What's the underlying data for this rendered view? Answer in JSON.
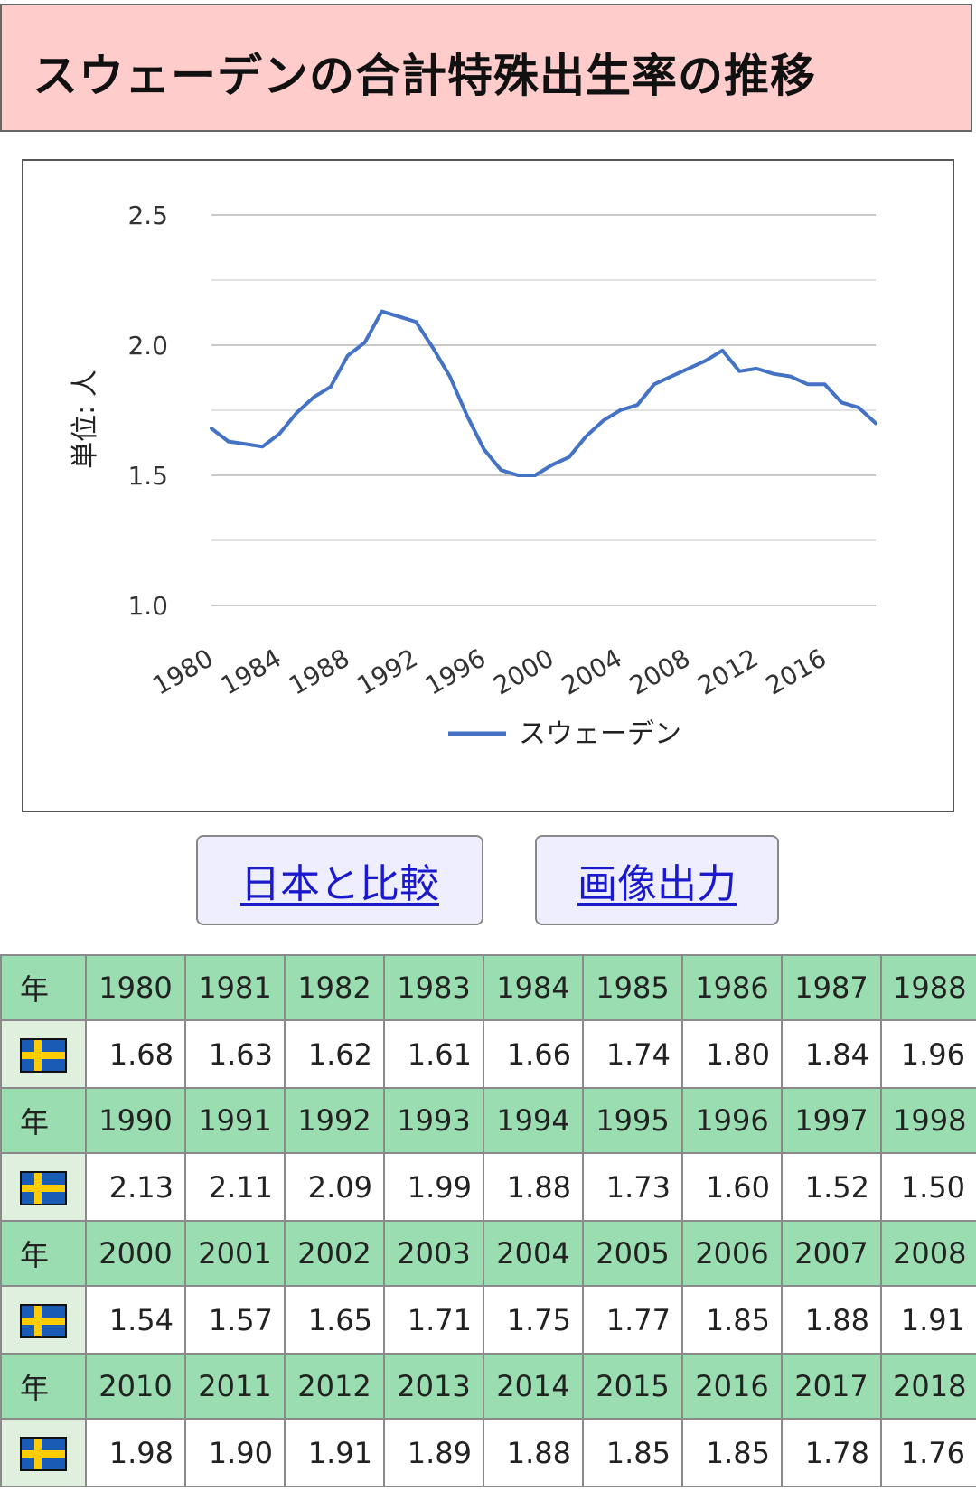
{
  "title": "スウェーデンの合計特殊出生率の推移",
  "buttons": {
    "compare": "日本と比較",
    "export": "画像出力"
  },
  "colors": {
    "line": "#4472c4",
    "flag_blue": "#1a5bb5",
    "flag_yellow": "#ffcc00",
    "year_row": "#99ddb0",
    "title_bg": "#ffcccc"
  },
  "chart_data": {
    "type": "line",
    "ylabel": "単位: 人",
    "ylim": [
      1.0,
      2.5
    ],
    "yticks": [
      "2.5",
      "2.0",
      "1.5",
      "1.0"
    ],
    "ytick_values": [
      2.5,
      2.0,
      1.5,
      1.0
    ],
    "xlim": [
      1980,
      2019
    ],
    "xtick_labels": [
      "1980",
      "1984",
      "1988",
      "1992",
      "1996",
      "2000",
      "2004",
      "2008",
      "2012",
      "2016"
    ],
    "xtick_values": [
      1980,
      1984,
      1988,
      1992,
      1996,
      2000,
      2004,
      2008,
      2012,
      2016
    ],
    "grid": true,
    "legend_position": "bottom",
    "series": [
      {
        "name": "スウェーデン",
        "x": [
          1980,
          1981,
          1982,
          1983,
          1984,
          1985,
          1986,
          1987,
          1988,
          1989,
          1990,
          1991,
          1992,
          1993,
          1994,
          1995,
          1996,
          1997,
          1998,
          1999,
          2000,
          2001,
          2002,
          2003,
          2004,
          2005,
          2006,
          2007,
          2008,
          2009,
          2010,
          2011,
          2012,
          2013,
          2014,
          2015,
          2016,
          2017,
          2018,
          2019
        ],
        "values": [
          1.68,
          1.63,
          1.62,
          1.61,
          1.66,
          1.74,
          1.8,
          1.84,
          1.96,
          2.01,
          2.13,
          2.11,
          2.09,
          1.99,
          1.88,
          1.73,
          1.6,
          1.52,
          1.5,
          1.5,
          1.54,
          1.57,
          1.65,
          1.71,
          1.75,
          1.77,
          1.85,
          1.88,
          1.91,
          1.94,
          1.98,
          1.9,
          1.91,
          1.89,
          1.88,
          1.85,
          1.85,
          1.78,
          1.76,
          1.7
        ]
      }
    ]
  },
  "table": {
    "year_header": "年",
    "flag": "sweden-flag-icon",
    "rows": [
      {
        "years": [
          "1980",
          "1981",
          "1982",
          "1983",
          "1984",
          "1985",
          "1986",
          "1987",
          "1988"
        ],
        "values": [
          "1.68",
          "1.63",
          "1.62",
          "1.61",
          "1.66",
          "1.74",
          "1.80",
          "1.84",
          "1.96"
        ]
      },
      {
        "years": [
          "1990",
          "1991",
          "1992",
          "1993",
          "1994",
          "1995",
          "1996",
          "1997",
          "1998"
        ],
        "values": [
          "2.13",
          "2.11",
          "2.09",
          "1.99",
          "1.88",
          "1.73",
          "1.60",
          "1.52",
          "1.50"
        ]
      },
      {
        "years": [
          "2000",
          "2001",
          "2002",
          "2003",
          "2004",
          "2005",
          "2006",
          "2007",
          "2008"
        ],
        "values": [
          "1.54",
          "1.57",
          "1.65",
          "1.71",
          "1.75",
          "1.77",
          "1.85",
          "1.88",
          "1.91"
        ]
      },
      {
        "years": [
          "2010",
          "2011",
          "2012",
          "2013",
          "2014",
          "2015",
          "2016",
          "2017",
          "2018"
        ],
        "values": [
          "1.98",
          "1.90",
          "1.91",
          "1.89",
          "1.88",
          "1.85",
          "1.85",
          "1.78",
          "1.76"
        ]
      }
    ]
  }
}
